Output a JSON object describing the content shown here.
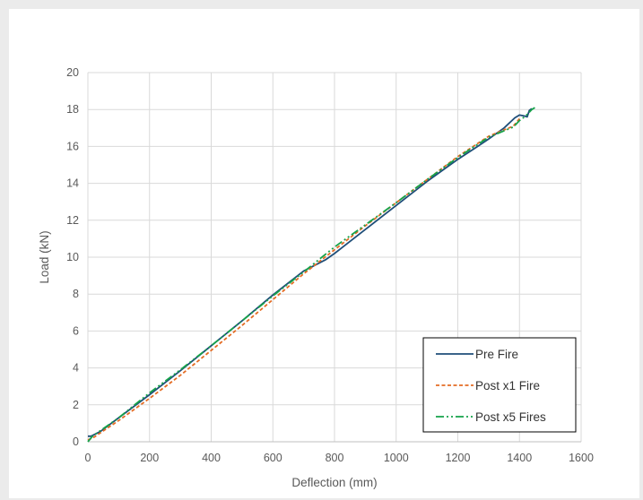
{
  "chart_data": {
    "type": "line",
    "title": "",
    "xlabel": "Deflection (mm)",
    "ylabel": "Load (kN)",
    "xlim": [
      0,
      1600
    ],
    "ylim": [
      0,
      20
    ],
    "xticks": [
      0,
      200,
      400,
      600,
      800,
      1000,
      1200,
      1400,
      1600
    ],
    "yticks": [
      0,
      2,
      4,
      6,
      8,
      10,
      12,
      14,
      16,
      18,
      20
    ],
    "grid": true,
    "legend_position": "bottom-right",
    "series": [
      {
        "name": "Pre Fire",
        "color": "#1f4e79",
        "dash": "solid",
        "x": [
          0,
          10,
          40,
          100,
          200,
          300,
          400,
          500,
          600,
          700,
          770,
          800,
          900,
          1000,
          1100,
          1200,
          1260,
          1300,
          1350,
          1385,
          1400,
          1415,
          1425,
          1432,
          1440
        ],
        "y": [
          0.3,
          0.3,
          0.55,
          1.3,
          2.55,
          3.85,
          5.2,
          6.55,
          7.95,
          9.25,
          9.85,
          10.2,
          11.5,
          12.8,
          14.1,
          15.3,
          15.95,
          16.4,
          17.0,
          17.55,
          17.7,
          17.65,
          17.6,
          17.95,
          18.05
        ]
      },
      {
        "name": "Post x1 Fire",
        "color": "#e46c24",
        "dash": "dashed",
        "x": [
          0,
          20,
          100,
          200,
          300,
          400,
          500,
          600,
          700,
          800,
          900,
          1000,
          1100,
          1200,
          1300,
          1380,
          1400
        ],
        "y": [
          0.1,
          0.25,
          1.15,
          2.35,
          3.6,
          4.95,
          6.3,
          7.7,
          9.1,
          10.4,
          11.7,
          12.95,
          14.2,
          15.45,
          16.55,
          17.1,
          17.5
        ]
      },
      {
        "name": "Post x5 Fires",
        "color": "#16a34a",
        "dash": "dash-dot-dot",
        "x": [
          0,
          15,
          100,
          200,
          300,
          400,
          500,
          600,
          700,
          800,
          900,
          1000,
          1100,
          1200,
          1300,
          1380,
          1400,
          1420,
          1440,
          1450
        ],
        "y": [
          0.0,
          0.3,
          1.3,
          2.65,
          3.9,
          5.2,
          6.55,
          7.9,
          9.2,
          10.55,
          11.75,
          12.95,
          14.2,
          15.4,
          16.5,
          17.05,
          17.4,
          17.65,
          18.0,
          18.1
        ]
      }
    ]
  }
}
